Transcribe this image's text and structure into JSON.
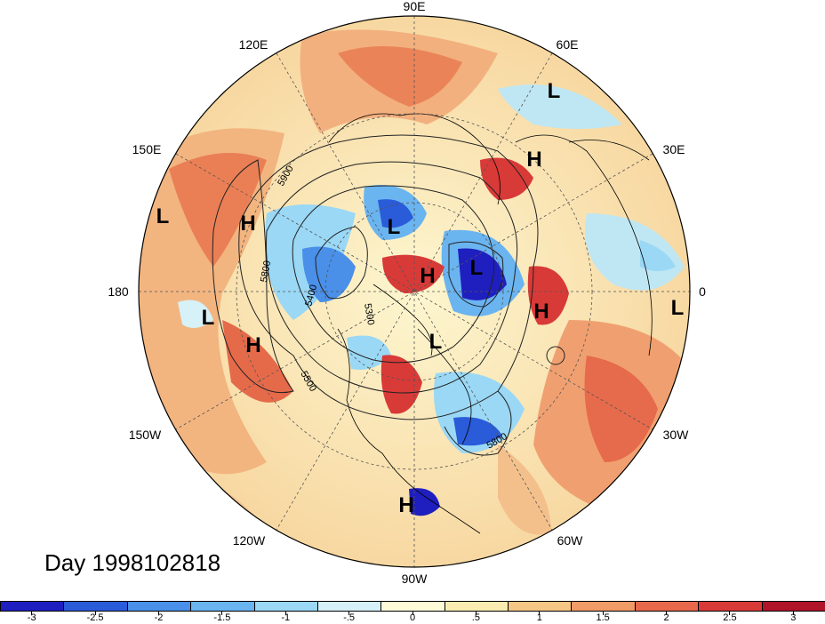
{
  "title": "Day 1998102818",
  "longitude_labels": [
    "90E",
    "60E",
    "30E",
    "0",
    "30W",
    "60W",
    "90W",
    "120W",
    "150W",
    "180",
    "150E",
    "120E"
  ],
  "pressure_centers": [
    {
      "type": "L",
      "lon_label": "near 60E"
    },
    {
      "type": "H",
      "lon_label": "near 45E"
    },
    {
      "type": "L",
      "lon_label": "near 160E"
    },
    {
      "type": "H",
      "lon_label": "near 135E"
    },
    {
      "type": "L",
      "lon_label": "polar, 100E"
    },
    {
      "type": "H",
      "lon_label": "polar"
    },
    {
      "type": "L",
      "lon_label": "polar, 15E"
    },
    {
      "type": "H",
      "lon_label": "near 10E"
    },
    {
      "type": "L",
      "lon_label": "near 0"
    },
    {
      "type": "L",
      "lon_label": "near 165W"
    },
    {
      "type": "H",
      "lon_label": "near 150W"
    },
    {
      "type": "L",
      "lon_label": "Canadian Arctic"
    },
    {
      "type": "H",
      "lon_label": "Central America"
    }
  ],
  "contour_labels": [
    "5900",
    "5800",
    "5400",
    "5300",
    "5500",
    "5800"
  ],
  "colorbar": {
    "colors": [
      "#1f1fbf",
      "#2a5bd8",
      "#4a8fe8",
      "#6ab4f0",
      "#9ad8f5",
      "#d6f1f8",
      "#fdfbd8",
      "#faecb0",
      "#f5c684",
      "#f09a66",
      "#e8684c",
      "#d83a38",
      "#b01428"
    ],
    "tick_labels": [
      "-3",
      "-2.5",
      "-2",
      "-1.5",
      "-1",
      "-.5",
      "0",
      ".5",
      "1",
      "1.5",
      "2",
      "2.5",
      "3"
    ]
  }
}
